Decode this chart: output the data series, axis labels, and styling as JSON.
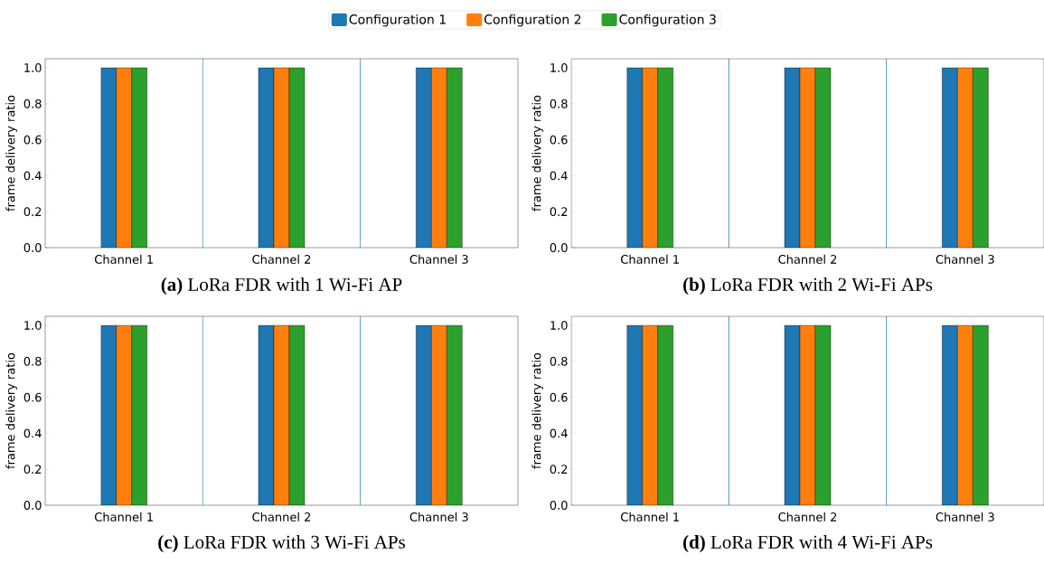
{
  "chart_data": [
    {
      "type": "bar",
      "title": "**(a)** LoRa FDR with 1 Wi-Fi AP",
      "ylabel": "frame delivery ratio",
      "categories": [
        "Channel 1",
        "Channel 2",
        "Channel 3"
      ],
      "series": [
        {
          "name": "Configuration 1",
          "color": "#1f77b4",
          "values": [
            1.0,
            1.0,
            1.0
          ]
        },
        {
          "name": "Configuration 2",
          "color": "#ff7f0e",
          "values": [
            1.0,
            1.0,
            1.0
          ]
        },
        {
          "name": "Configuration 3",
          "color": "#2ca02c",
          "values": [
            1.0,
            1.0,
            1.0
          ]
        }
      ],
      "ylim": [
        0,
        1.05
      ],
      "yticks": [
        {
          "value": 0,
          "label": "0.0"
        },
        {
          "value": 0.2,
          "label": "0.2"
        },
        {
          "value": 0.4,
          "label": "0.4"
        },
        {
          "value": 0.6,
          "label": "0.6"
        },
        {
          "value": 0.8,
          "label": "0.8"
        },
        {
          "value": 1.0,
          "label": "1.0"
        }
      ],
      "legend": "top"
    },
    {
      "type": "bar",
      "title": "**(b)** LoRa FDR with 2 Wi-Fi APs",
      "ylabel": "frame delivery ratio",
      "categories": [
        "Channel 1",
        "Channel 2",
        "Channel 3"
      ],
      "series": [
        {
          "color": "#1f77b4",
          "values": [
            1.0,
            1.0,
            1.0
          ]
        },
        {
          "color": "#ff7f0e",
          "values": [
            1.0,
            1.0,
            1.0
          ]
        },
        {
          "color": "#2ca02c",
          "values": [
            1.0,
            1.0,
            1.0
          ]
        }
      ],
      "ylim": [
        0,
        1.05
      ],
      "yticks": [
        {
          "value": 0,
          "label": "0.0"
        },
        {
          "value": 0.2,
          "label": "0.2"
        },
        {
          "value": 0.4,
          "label": "0.4"
        },
        {
          "value": 0.6,
          "label": "0.6"
        },
        {
          "value": 0.8,
          "label": "0.8"
        },
        {
          "value": 1.0,
          "label": "1.0"
        }
      ]
    },
    {
      "type": "bar",
      "title": "**(c)** LoRa FDR with 3 Wi-Fi APs",
      "ylabel": "frame delivery ratio",
      "categories": [
        "Channel 1",
        "Channel 2",
        "Channel 3"
      ],
      "series": [
        {
          "color": "#1f77b4",
          "values": [
            1.0,
            1.0,
            1.0
          ]
        },
        {
          "color": "#ff7f0e",
          "values": [
            1.0,
            1.0,
            1.0
          ]
        },
        {
          "color": "#2ca02c",
          "values": [
            1.0,
            1.0,
            1.0
          ]
        }
      ],
      "ylim": [
        0,
        1.05
      ],
      "yticks": [
        {
          "value": 0,
          "label": "0.0"
        },
        {
          "value": 0.2,
          "label": "0.2"
        },
        {
          "value": 0.4,
          "label": "0.4"
        },
        {
          "value": 0.6,
          "label": "0.6"
        },
        {
          "value": 0.8,
          "label": "0.8"
        },
        {
          "value": 1.0,
          "label": "1.0"
        }
      ]
    },
    {
      "type": "bar",
      "title": "**(d)** LoRa FDR with 4 Wi-Fi APs",
      "ylabel": "frame delivery ratio",
      "categories": [
        "Channel 1",
        "Channel 2",
        "Channel 3"
      ],
      "series": [
        {
          "color": "#1f77b4",
          "values": [
            1.0,
            1.0,
            1.0
          ]
        },
        {
          "color": "#ff7f0e",
          "values": [
            1.0,
            1.0,
            1.0
          ]
        },
        {
          "color": "#2ca02c",
          "values": [
            1.0,
            1.0,
            1.0
          ]
        }
      ],
      "ylim": [
        0,
        1.05
      ],
      "yticks": [
        {
          "value": 0,
          "label": "0.0"
        },
        {
          "value": 0.2,
          "label": "0.2"
        },
        {
          "value": 0.4,
          "label": "0.4"
        },
        {
          "value": 0.6,
          "label": "0.6"
        },
        {
          "value": 0.8,
          "label": "0.8"
        },
        {
          "value": 1.0,
          "label": "1.0"
        }
      ]
    }
  ]
}
